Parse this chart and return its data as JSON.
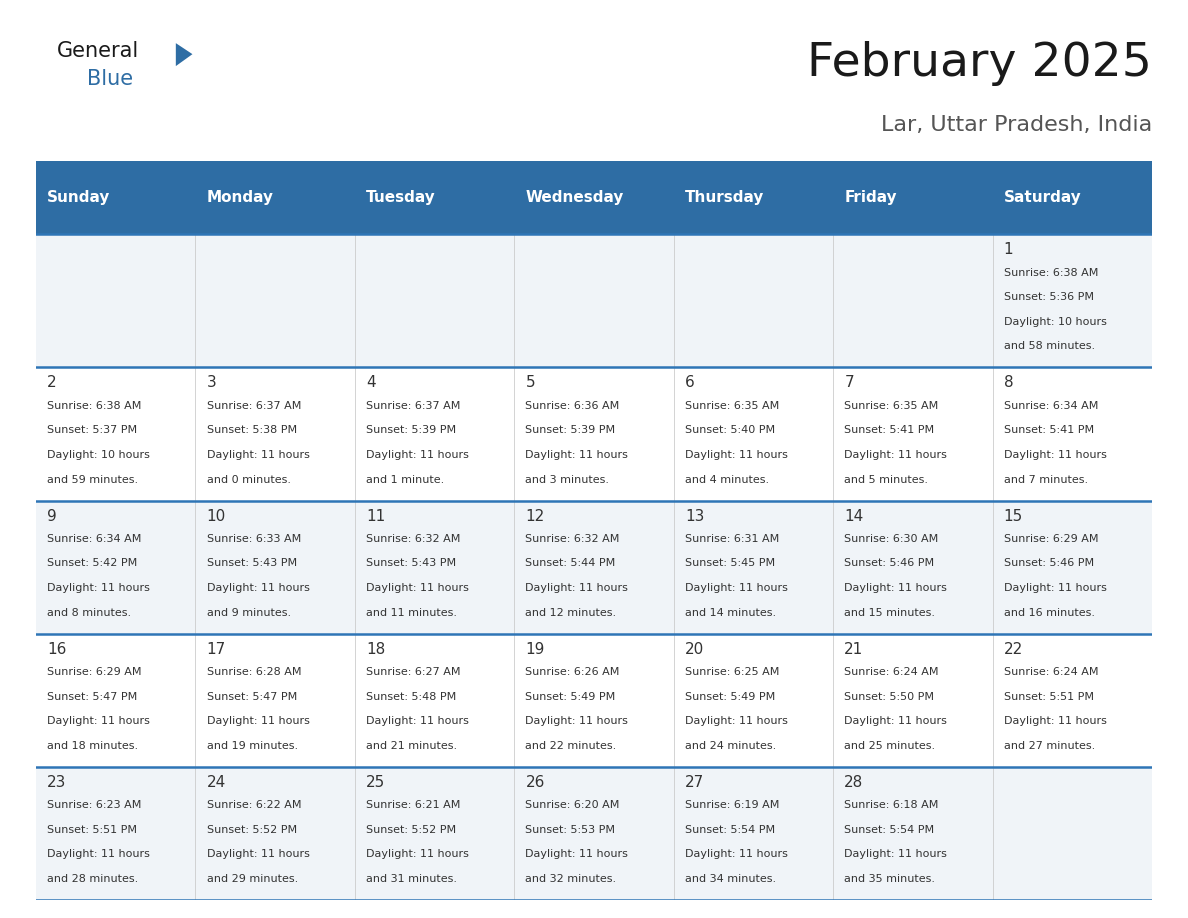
{
  "title": "February 2025",
  "subtitle": "Lar, Uttar Pradesh, India",
  "days_of_week": [
    "Sunday",
    "Monday",
    "Tuesday",
    "Wednesday",
    "Thursday",
    "Friday",
    "Saturday"
  ],
  "header_bg": "#2E6DA4",
  "header_text": "#FFFFFF",
  "row_bg_odd": "#F0F4F8",
  "row_bg_even": "#FFFFFF",
  "separator_color": "#2E75B6",
  "day_number_color": "#333333",
  "text_color": "#333333",
  "calendar_data": [
    {
      "day": 1,
      "col": 6,
      "row": 0,
      "sunrise": "6:38 AM",
      "sunset": "5:36 PM",
      "daylight": "10 hours and 58 minutes."
    },
    {
      "day": 2,
      "col": 0,
      "row": 1,
      "sunrise": "6:38 AM",
      "sunset": "5:37 PM",
      "daylight": "10 hours and 59 minutes."
    },
    {
      "day": 3,
      "col": 1,
      "row": 1,
      "sunrise": "6:37 AM",
      "sunset": "5:38 PM",
      "daylight": "11 hours and 0 minutes."
    },
    {
      "day": 4,
      "col": 2,
      "row": 1,
      "sunrise": "6:37 AM",
      "sunset": "5:39 PM",
      "daylight": "11 hours and 1 minute."
    },
    {
      "day": 5,
      "col": 3,
      "row": 1,
      "sunrise": "6:36 AM",
      "sunset": "5:39 PM",
      "daylight": "11 hours and 3 minutes."
    },
    {
      "day": 6,
      "col": 4,
      "row": 1,
      "sunrise": "6:35 AM",
      "sunset": "5:40 PM",
      "daylight": "11 hours and 4 minutes."
    },
    {
      "day": 7,
      "col": 5,
      "row": 1,
      "sunrise": "6:35 AM",
      "sunset": "5:41 PM",
      "daylight": "11 hours and 5 minutes."
    },
    {
      "day": 8,
      "col": 6,
      "row": 1,
      "sunrise": "6:34 AM",
      "sunset": "5:41 PM",
      "daylight": "11 hours and 7 minutes."
    },
    {
      "day": 9,
      "col": 0,
      "row": 2,
      "sunrise": "6:34 AM",
      "sunset": "5:42 PM",
      "daylight": "11 hours and 8 minutes."
    },
    {
      "day": 10,
      "col": 1,
      "row": 2,
      "sunrise": "6:33 AM",
      "sunset": "5:43 PM",
      "daylight": "11 hours and 9 minutes."
    },
    {
      "day": 11,
      "col": 2,
      "row": 2,
      "sunrise": "6:32 AM",
      "sunset": "5:43 PM",
      "daylight": "11 hours and 11 minutes."
    },
    {
      "day": 12,
      "col": 3,
      "row": 2,
      "sunrise": "6:32 AM",
      "sunset": "5:44 PM",
      "daylight": "11 hours and 12 minutes."
    },
    {
      "day": 13,
      "col": 4,
      "row": 2,
      "sunrise": "6:31 AM",
      "sunset": "5:45 PM",
      "daylight": "11 hours and 14 minutes."
    },
    {
      "day": 14,
      "col": 5,
      "row": 2,
      "sunrise": "6:30 AM",
      "sunset": "5:46 PM",
      "daylight": "11 hours and 15 minutes."
    },
    {
      "day": 15,
      "col": 6,
      "row": 2,
      "sunrise": "6:29 AM",
      "sunset": "5:46 PM",
      "daylight": "11 hours and 16 minutes."
    },
    {
      "day": 16,
      "col": 0,
      "row": 3,
      "sunrise": "6:29 AM",
      "sunset": "5:47 PM",
      "daylight": "11 hours and 18 minutes."
    },
    {
      "day": 17,
      "col": 1,
      "row": 3,
      "sunrise": "6:28 AM",
      "sunset": "5:47 PM",
      "daylight": "11 hours and 19 minutes."
    },
    {
      "day": 18,
      "col": 2,
      "row": 3,
      "sunrise": "6:27 AM",
      "sunset": "5:48 PM",
      "daylight": "11 hours and 21 minutes."
    },
    {
      "day": 19,
      "col": 3,
      "row": 3,
      "sunrise": "6:26 AM",
      "sunset": "5:49 PM",
      "daylight": "11 hours and 22 minutes."
    },
    {
      "day": 20,
      "col": 4,
      "row": 3,
      "sunrise": "6:25 AM",
      "sunset": "5:49 PM",
      "daylight": "11 hours and 24 minutes."
    },
    {
      "day": 21,
      "col": 5,
      "row": 3,
      "sunrise": "6:24 AM",
      "sunset": "5:50 PM",
      "daylight": "11 hours and 25 minutes."
    },
    {
      "day": 22,
      "col": 6,
      "row": 3,
      "sunrise": "6:24 AM",
      "sunset": "5:51 PM",
      "daylight": "11 hours and 27 minutes."
    },
    {
      "day": 23,
      "col": 0,
      "row": 4,
      "sunrise": "6:23 AM",
      "sunset": "5:51 PM",
      "daylight": "11 hours and 28 minutes."
    },
    {
      "day": 24,
      "col": 1,
      "row": 4,
      "sunrise": "6:22 AM",
      "sunset": "5:52 PM",
      "daylight": "11 hours and 29 minutes."
    },
    {
      "day": 25,
      "col": 2,
      "row": 4,
      "sunrise": "6:21 AM",
      "sunset": "5:52 PM",
      "daylight": "11 hours and 31 minutes."
    },
    {
      "day": 26,
      "col": 3,
      "row": 4,
      "sunrise": "6:20 AM",
      "sunset": "5:53 PM",
      "daylight": "11 hours and 32 minutes."
    },
    {
      "day": 27,
      "col": 4,
      "row": 4,
      "sunrise": "6:19 AM",
      "sunset": "5:54 PM",
      "daylight": "11 hours and 34 minutes."
    },
    {
      "day": 28,
      "col": 5,
      "row": 4,
      "sunrise": "6:18 AM",
      "sunset": "5:54 PM",
      "daylight": "11 hours and 35 minutes."
    }
  ],
  "num_rows": 5,
  "logo_color_general": "#1a1a1a",
  "logo_color_blue": "#2E6DA4",
  "logo_triangle_color": "#2E6DA4",
  "title_fontsize": 34,
  "subtitle_fontsize": 16,
  "header_fontsize": 11,
  "day_fontsize": 11,
  "cell_fontsize": 8
}
